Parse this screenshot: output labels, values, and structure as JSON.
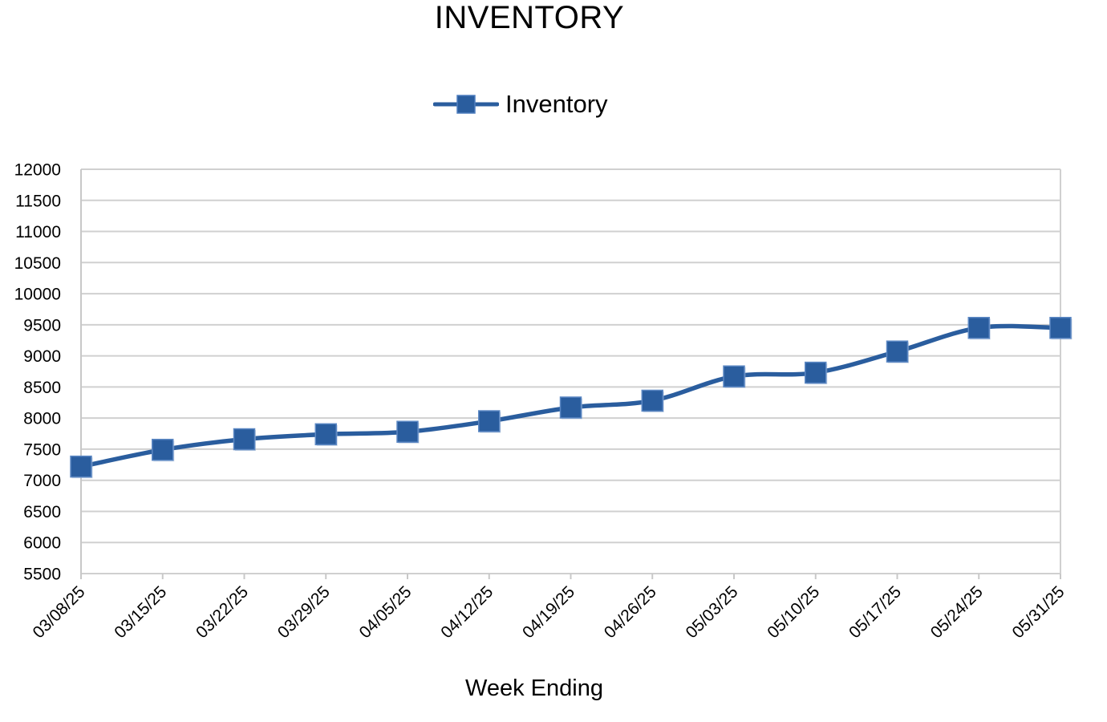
{
  "chart_data": {
    "type": "line",
    "title": "INVENTORY",
    "xlabel": "Week Ending",
    "ylabel": "",
    "categories": [
      "03/08/25",
      "03/15/25",
      "03/22/25",
      "03/29/25",
      "04/05/25",
      "04/12/25",
      "04/19/25",
      "04/26/25",
      "05/03/25",
      "05/10/25",
      "05/17/25",
      "05/24/25",
      "05/31/25"
    ],
    "series": [
      {
        "name": "Inventory",
        "values": [
          7220,
          7490,
          7660,
          7740,
          7780,
          7950,
          8170,
          8280,
          8670,
          8730,
          9070,
          9450,
          9450
        ],
        "color": "#2a5d9e",
        "marker": "square"
      }
    ],
    "ylim": [
      5500,
      12000
    ],
    "yticks": [
      5500,
      6000,
      6500,
      7000,
      7500,
      8000,
      8500,
      9000,
      9500,
      10000,
      10500,
      11000,
      11500,
      12000
    ],
    "grid": true,
    "legend_position": "top-center",
    "smooth": true
  }
}
